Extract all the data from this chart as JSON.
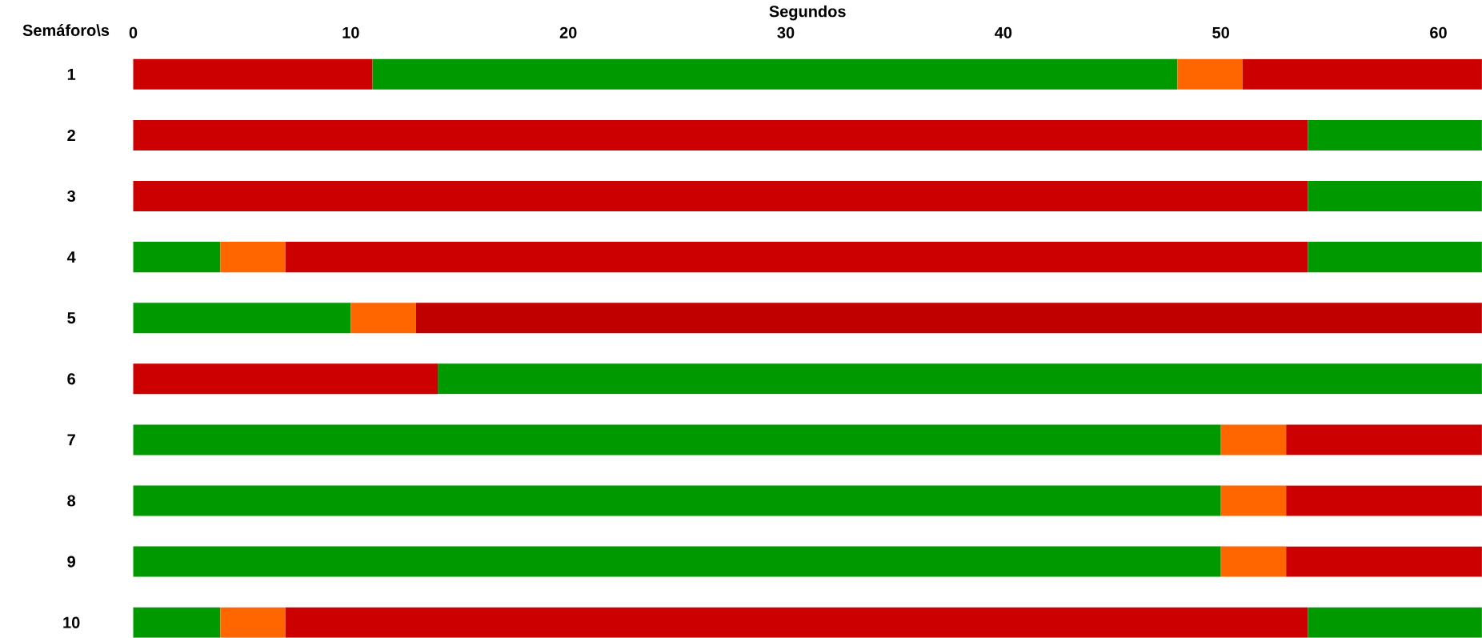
{
  "chart_data": {
    "type": "bar",
    "orientation": "horizontal",
    "stacked": true,
    "xlabel": "Segundos",
    "ylabel": "Semáforo\\s",
    "categories": [
      "1",
      "2",
      "3",
      "4",
      "5",
      "6",
      "7",
      "8",
      "9",
      "10"
    ],
    "xlim": [
      0,
      62
    ],
    "xticks": [
      0,
      10,
      20,
      30,
      40,
      50,
      60
    ],
    "series": [
      {
        "values": [
          11,
          54,
          54,
          4,
          10,
          14,
          50,
          50,
          50,
          4
        ],
        "colors": [
          "#cc0000",
          "#cc0000",
          "#cc0000",
          "#009900",
          "#009900",
          "#cc0000",
          "#009900",
          "#009900",
          "#009900",
          "#009900"
        ]
      },
      {
        "values": [
          37,
          8,
          8,
          3,
          3,
          48,
          3,
          3,
          3,
          3
        ],
        "colors": [
          "#009900",
          "#009900",
          "#009900",
          "#ff6600",
          "#ff6600",
          "#009900",
          "#ff6600",
          "#ff6600",
          "#ff6600",
          "#ff6600"
        ]
      },
      {
        "values": [
          3,
          null,
          null,
          47,
          49,
          null,
          9,
          9,
          9,
          47
        ],
        "colors": [
          "#ff6600",
          null,
          null,
          "#cc0000",
          "#c00000",
          null,
          "#cc0000",
          "#cc0000",
          "#cc0000",
          "#cc0000"
        ]
      },
      {
        "values": [
          11,
          null,
          null,
          8,
          null,
          null,
          null,
          null,
          null,
          8
        ],
        "colors": [
          "#cc0000",
          null,
          null,
          "#009900",
          null,
          null,
          null,
          null,
          null,
          "#009900"
        ]
      }
    ]
  }
}
